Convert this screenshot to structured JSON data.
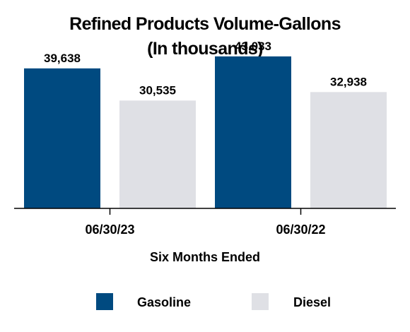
{
  "chart_data": {
    "type": "bar",
    "title_lines": [
      "Refined Products Volume-Gallons",
      "(In thousands)"
    ],
    "xlabel": "Six Months Ended",
    "categories": [
      "06/30/23",
      "06/30/22"
    ],
    "series": [
      {
        "name": "Gasoline",
        "color": "#004a80",
        "values": [
          39638,
          43033
        ],
        "labels": [
          "39,638",
          "43,033"
        ]
      },
      {
        "name": "Diesel",
        "color": "#dfe0e5",
        "values": [
          30535,
          32938
        ],
        "labels": [
          "30,535",
          "32,938"
        ]
      }
    ],
    "ylim": [
      0,
      50000
    ],
    "grid": false,
    "legend_position": "bottom"
  }
}
